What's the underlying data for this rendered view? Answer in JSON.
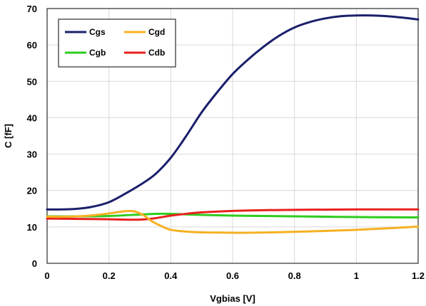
{
  "chart_data": {
    "type": "line",
    "xlabel": "Vgbias [V]",
    "ylabel": "C [fF]",
    "xlim": [
      0,
      1.2
    ],
    "ylim": [
      0,
      70
    ],
    "xticks": [
      "0",
      "0.2",
      "0.4",
      "0.6",
      "0.8",
      "1",
      "1.2"
    ],
    "yticks": [
      "0",
      "10",
      "20",
      "30",
      "40",
      "50",
      "60",
      "70"
    ],
    "grid": true,
    "legend_position": "top-left",
    "series": [
      {
        "name": "Cgs",
        "color": "#1b1f6b",
        "points": [
          [
            0,
            14.8
          ],
          [
            0.05,
            14.8
          ],
          [
            0.1,
            15.0
          ],
          [
            0.15,
            15.6
          ],
          [
            0.2,
            16.8
          ],
          [
            0.25,
            19.0
          ],
          [
            0.3,
            21.5
          ],
          [
            0.35,
            24.5
          ],
          [
            0.4,
            29.0
          ],
          [
            0.45,
            35.0
          ],
          [
            0.5,
            41.5
          ],
          [
            0.55,
            47.0
          ],
          [
            0.6,
            52.0
          ],
          [
            0.65,
            56.0
          ],
          [
            0.7,
            59.5
          ],
          [
            0.75,
            62.5
          ],
          [
            0.8,
            64.8
          ],
          [
            0.85,
            66.3
          ],
          [
            0.9,
            67.3
          ],
          [
            0.95,
            67.9
          ],
          [
            1.0,
            68.1
          ],
          [
            1.05,
            68.1
          ],
          [
            1.1,
            67.9
          ],
          [
            1.15,
            67.5
          ],
          [
            1.2,
            67.0
          ]
        ]
      },
      {
        "name": "Cgd",
        "color": "#f5b021",
        "points": [
          [
            0,
            12.8
          ],
          [
            0.05,
            12.8
          ],
          [
            0.1,
            12.9
          ],
          [
            0.15,
            13.2
          ],
          [
            0.2,
            13.7
          ],
          [
            0.25,
            14.3
          ],
          [
            0.28,
            14.3
          ],
          [
            0.31,
            13.3
          ],
          [
            0.34,
            11.5
          ],
          [
            0.37,
            10.2
          ],
          [
            0.4,
            9.2
          ],
          [
            0.45,
            8.7
          ],
          [
            0.5,
            8.5
          ],
          [
            0.55,
            8.45
          ],
          [
            0.6,
            8.4
          ],
          [
            0.65,
            8.4
          ],
          [
            0.7,
            8.45
          ],
          [
            0.8,
            8.65
          ],
          [
            0.9,
            8.9
          ],
          [
            1.0,
            9.2
          ],
          [
            1.1,
            9.6
          ],
          [
            1.2,
            10.1
          ]
        ]
      },
      {
        "name": "Cgb",
        "color": "#2ecc1f",
        "points": [
          [
            0,
            12.9
          ],
          [
            0.1,
            12.9
          ],
          [
            0.2,
            13.0
          ],
          [
            0.3,
            13.4
          ],
          [
            0.35,
            13.6
          ],
          [
            0.4,
            13.6
          ],
          [
            0.5,
            13.3
          ],
          [
            0.6,
            13.1
          ],
          [
            0.7,
            13.0
          ],
          [
            0.8,
            12.9
          ],
          [
            0.9,
            12.8
          ],
          [
            1.0,
            12.7
          ],
          [
            1.1,
            12.65
          ],
          [
            1.2,
            12.6
          ]
        ]
      },
      {
        "name": "Cdb",
        "color": "#e8211f",
        "points": [
          [
            0,
            12.3
          ],
          [
            0.1,
            12.2
          ],
          [
            0.2,
            12.1
          ],
          [
            0.25,
            12.0
          ],
          [
            0.3,
            12.0
          ],
          [
            0.35,
            12.4
          ],
          [
            0.4,
            13.1
          ],
          [
            0.45,
            13.6
          ],
          [
            0.5,
            14.0
          ],
          [
            0.6,
            14.4
          ],
          [
            0.7,
            14.6
          ],
          [
            0.8,
            14.7
          ],
          [
            0.9,
            14.75
          ],
          [
            1.0,
            14.8
          ],
          [
            1.1,
            14.8
          ],
          [
            1.2,
            14.8
          ]
        ]
      }
    ]
  }
}
